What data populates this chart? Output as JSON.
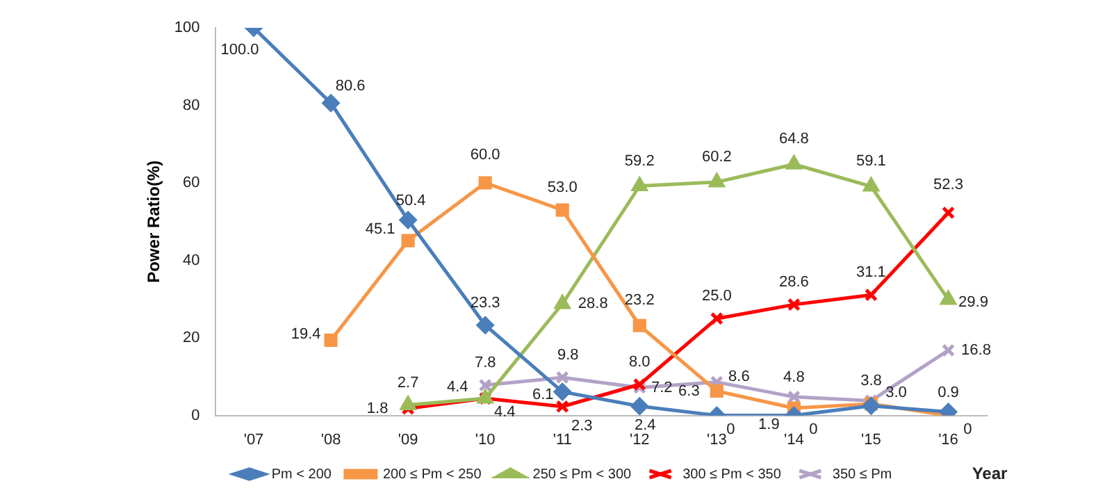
{
  "chart_data": {
    "type": "line",
    "ylabel": "Power Ratio(%)",
    "xlabel": "Year",
    "categories": [
      "'07",
      "'08",
      "'09",
      "'10",
      "'11",
      "'12",
      "'13",
      "'14",
      "'15",
      "'16"
    ],
    "series": [
      {
        "name": "Pm < 200",
        "color": "#4a7ebb",
        "marker": "diamond",
        "values": [
          100.0,
          80.6,
          50.4,
          23.3,
          6.1,
          2.4,
          0,
          0,
          2.5,
          0.9
        ],
        "value_labels": [
          "100.0",
          "80.6",
          "50.4",
          "23.3",
          "6.1",
          "2.4",
          "0",
          "0",
          null,
          "0.9"
        ]
      },
      {
        "name": "200 ≤ Pm < 250",
        "color": "#f79646",
        "marker": "square",
        "values": [
          null,
          19.4,
          45.1,
          60.0,
          53.0,
          23.2,
          6.3,
          1.9,
          3.0,
          0
        ],
        "value_labels": [
          null,
          "19.4",
          "45.1",
          "60.0",
          "53.0",
          "23.2",
          "6.3",
          "1.9",
          "3.0",
          "0"
        ]
      },
      {
        "name": "250 ≤ Pm < 300",
        "color": "#9bbb59",
        "marker": "triangle",
        "values": [
          null,
          null,
          2.7,
          4.4,
          28.8,
          59.2,
          60.2,
          64.8,
          59.1,
          29.9
        ],
        "value_labels": [
          null,
          null,
          "2.7",
          "4.4",
          "28.8",
          "59.2",
          "60.2",
          "64.8",
          "59.1",
          "29.9"
        ]
      },
      {
        "name": "300 ≤ Pm < 350",
        "color": "#ff0000",
        "marker": "cross",
        "values": [
          null,
          null,
          1.8,
          4.4,
          2.3,
          8.0,
          25.0,
          28.6,
          31.1,
          52.3
        ],
        "value_labels": [
          null,
          null,
          "1.8",
          "4.4",
          "2.3",
          "8.0",
          "25.0",
          "28.6",
          "31.1",
          "52.3"
        ]
      },
      {
        "name": "350 ≤ Pm",
        "color": "#b3a2c7",
        "marker": "cross",
        "values": [
          null,
          null,
          null,
          7.8,
          9.8,
          7.2,
          8.6,
          4.8,
          3.8,
          16.8
        ],
        "value_labels": [
          null,
          null,
          null,
          "7.8",
          "9.8",
          "7.2",
          "8.6",
          "4.8",
          "3.8",
          "16.8"
        ]
      }
    ],
    "ylim": [
      0,
      100
    ],
    "yticks": [
      0,
      20,
      40,
      60,
      80,
      100
    ],
    "grid": false,
    "legend": "bottom",
    "line_style": "solid"
  }
}
